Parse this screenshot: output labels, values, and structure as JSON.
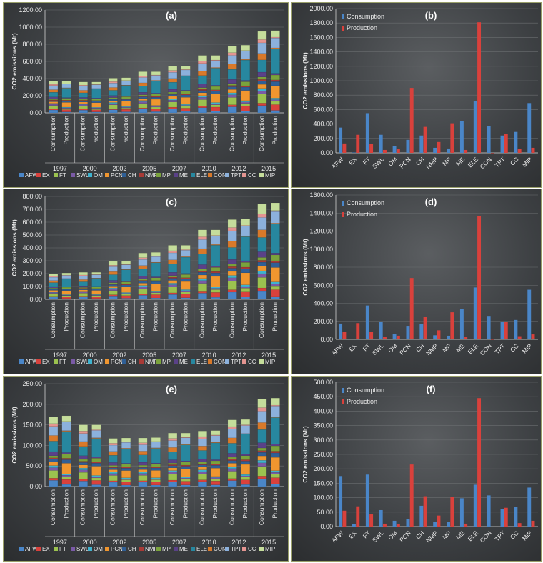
{
  "chart_data": [
    {
      "id": "a",
      "type": "stacked-bar",
      "title": "(a)",
      "ylabel": "CO2 emissions (Mt)",
      "ylim": [
        0,
        1200
      ],
      "yticks": [
        "0.00",
        "200.00",
        "400.00",
        "600.00",
        "800.00",
        "1000.00",
        "1200.00"
      ],
      "years": [
        "1997",
        "2000",
        "2002",
        "2005",
        "2007",
        "2010",
        "2012",
        "2015"
      ],
      "bar_labels": [
        "Consumption",
        "Production"
      ],
      "series": [
        "AFW",
        "EX",
        "FT",
        "SWL",
        "OM",
        "PCN",
        "CH",
        "NMP",
        "MP",
        "ME",
        "ELE",
        "CON",
        "TPT",
        "CC",
        "MIP"
      ],
      "totals": [
        [
          370,
          370
        ],
        [
          360,
          360
        ],
        [
          405,
          410
        ],
        [
          480,
          480
        ],
        [
          550,
          550
        ],
        [
          670,
          670
        ],
        [
          780,
          790
        ],
        [
          950,
          960
        ]
      ]
    },
    {
      "id": "b",
      "type": "bar",
      "title": "(b)",
      "ylabel": "CO2 emissions (Mt)",
      "ylim": [
        0,
        2000
      ],
      "yticks": [
        "0.00",
        "200.00",
        "400.00",
        "600.00",
        "800.00",
        "1000.00",
        "1200.00",
        "1400.00",
        "1600.00",
        "1800.00",
        "2000.00"
      ],
      "categories": [
        "AFW",
        "EX",
        "FT",
        "SWL",
        "OM",
        "PCN",
        "CH",
        "NMP",
        "MP",
        "ME",
        "ELE",
        "CON",
        "TPT",
        "CC",
        "MIP"
      ],
      "series": [
        {
          "name": "Consumption",
          "values": [
            350,
            5,
            550,
            250,
            90,
            180,
            240,
            70,
            60,
            440,
            720,
            370,
            240,
            290,
            690
          ]
        },
        {
          "name": "Production",
          "values": [
            130,
            250,
            120,
            40,
            50,
            900,
            360,
            150,
            410,
            40,
            1810,
            0,
            260,
            50,
            70
          ]
        }
      ]
    },
    {
      "id": "c",
      "type": "stacked-bar",
      "title": "(c)",
      "ylabel": "CO2 emissions (Mt)",
      "ylim": [
        0,
        800
      ],
      "yticks": [
        "0.00",
        "100.00",
        "200.00",
        "300.00",
        "400.00",
        "500.00",
        "600.00",
        "700.00",
        "800.00"
      ],
      "years": [
        "1997",
        "2000",
        "2002",
        "2005",
        "2007",
        "2010",
        "2012",
        "2015"
      ],
      "bar_labels": [
        "Consumption",
        "Production"
      ],
      "series": [
        "AFW",
        "EX",
        "FT",
        "SWL",
        "OM",
        "PCN",
        "CH",
        "NMP",
        "MP",
        "ME",
        "ELE",
        "CON",
        "TPT",
        "CC",
        "MIP"
      ],
      "totals": [
        [
          200,
          205
        ],
        [
          210,
          210
        ],
        [
          295,
          295
        ],
        [
          360,
          365
        ],
        [
          420,
          420
        ],
        [
          540,
          540
        ],
        [
          620,
          625
        ],
        [
          740,
          750
        ]
      ]
    },
    {
      "id": "d",
      "type": "bar",
      "title": "(d)",
      "ylabel": "CO2 emissions (Mt)",
      "ylim": [
        0,
        1600
      ],
      "yticks": [
        "0.00",
        "200.00",
        "400.00",
        "600.00",
        "800.00",
        "1000.00",
        "1200.00",
        "1400.00",
        "1600.00"
      ],
      "categories": [
        "AFW",
        "EX",
        "FT",
        "SWL",
        "OM",
        "PCN",
        "CH",
        "NMP",
        "MP",
        "ME",
        "ELE",
        "CON",
        "TPT",
        "CC",
        "MIP"
      ],
      "series": [
        {
          "name": "Consumption",
          "values": [
            175,
            5,
            375,
            195,
            60,
            150,
            170,
            45,
            40,
            340,
            575,
            260,
            190,
            215,
            550
          ]
        },
        {
          "name": "Production",
          "values": [
            80,
            180,
            80,
            30,
            40,
            680,
            250,
            100,
            300,
            25,
            1370,
            0,
            195,
            35,
            55
          ]
        }
      ]
    },
    {
      "id": "e",
      "type": "stacked-bar",
      "title": "(e)",
      "ylabel": "CO2 emissions (Mt)",
      "ylim": [
        0,
        250
      ],
      "yticks": [
        "0.00",
        "50.00",
        "100.00",
        "150.00",
        "200.00",
        "250.00"
      ],
      "years": [
        "1997",
        "2000",
        "2002",
        "2005",
        "2007",
        "2010",
        "2012",
        "2015"
      ],
      "bar_labels": [
        "Consumption",
        "Production"
      ],
      "series": [
        "AFW",
        "EX",
        "FT",
        "SWL",
        "OM",
        "PCN",
        "CH",
        "NMP",
        "MP",
        "ME",
        "ELE",
        "CON",
        "TPT",
        "CC",
        "MIP"
      ],
      "totals": [
        [
          170,
          172
        ],
        [
          150,
          150
        ],
        [
          117,
          118
        ],
        [
          118,
          119
        ],
        [
          130,
          130
        ],
        [
          135,
          136
        ],
        [
          162,
          163
        ],
        [
          213,
          215
        ]
      ]
    },
    {
      "id": "f",
      "type": "bar",
      "title": "(f)",
      "ylabel": "CO2 emissions (Mt)",
      "ylim": [
        0,
        500
      ],
      "yticks": [
        "0.00",
        "50.00",
        "100.00",
        "150.00",
        "200.00",
        "250.00",
        "300.00",
        "350.00",
        "400.00",
        "450.00",
        "500.00"
      ],
      "categories": [
        "AFW",
        "EX",
        "FT",
        "SWL",
        "OM",
        "PCN",
        "CH",
        "NMP",
        "MP",
        "ME",
        "ELE",
        "CON",
        "TPT",
        "CC",
        "MIP"
      ],
      "series": [
        {
          "name": "Consumption",
          "values": [
            175,
            8,
            180,
            57,
            20,
            27,
            72,
            15,
            15,
            98,
            145,
            108,
            60,
            67,
            135
          ]
        },
        {
          "name": "Production",
          "values": [
            55,
            70,
            42,
            10,
            10,
            215,
            105,
            38,
            103,
            10,
            445,
            0,
            65,
            12,
            20
          ]
        }
      ]
    }
  ],
  "colors": {
    "AFW": "#4a86c8",
    "EX": "#d9413c",
    "FT": "#9bc24f",
    "SWL": "#7a5aa6",
    "OM": "#3fb3cf",
    "PCN": "#f0962f",
    "CH": "#2f5f96",
    "NMP": "#a83a36",
    "MP": "#7aa33c",
    "ME": "#5a4188",
    "ELE": "#27879f",
    "CON": "#d8792a",
    "TPT": "#8cb1dc",
    "CC": "#e49591",
    "MIP": "#c5dd9b",
    "consumption": "#4a86c8",
    "production": "#d9413c",
    "text": "#eaeaea",
    "grid": "#6b6e70",
    "axis": "#d0d0d0"
  }
}
